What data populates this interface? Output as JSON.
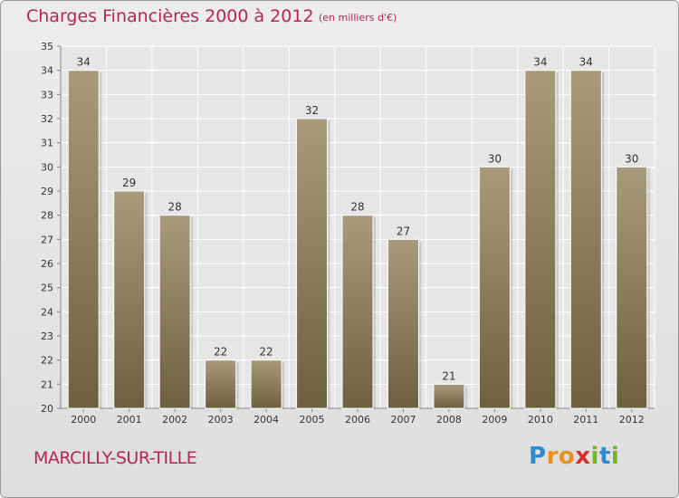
{
  "header": {
    "title": "Charges Financières 2000 à 2012",
    "subtitle": "(en milliers d'€)"
  },
  "footer": {
    "commune": "MARCILLY-SUR-TILLE",
    "logo_text": "Proxiti",
    "logo_letters": [
      "P",
      "r",
      "o",
      "x",
      "i",
      "t",
      "i"
    ],
    "logo_colors": [
      "#2a8bd0",
      "#e8911c",
      "#e8911c",
      "#d2302e",
      "#79b32b",
      "#2a8bd0",
      "#79b32b"
    ]
  },
  "colors": {
    "bar_top": "#a99a7c",
    "bar_bottom": "#6e5f40",
    "accent": "#b5245a",
    "text": "#333333"
  },
  "chart_data": {
    "type": "bar",
    "title": "Charges Financières 2000 à 2012",
    "subtitle": "(en milliers d'€)",
    "xlabel": "",
    "ylabel": "",
    "categories": [
      "2000",
      "2001",
      "2002",
      "2003",
      "2004",
      "2005",
      "2006",
      "2007",
      "2008",
      "2009",
      "2010",
      "2011",
      "2012"
    ],
    "values": [
      34,
      29,
      28,
      22,
      22,
      32,
      28,
      27,
      21,
      30,
      34,
      34,
      30
    ],
    "data_labels": [
      "34",
      "29",
      "28",
      "22",
      "22",
      "32",
      "28",
      "27",
      "21",
      "30",
      "34",
      "34",
      "30"
    ],
    "ylim": [
      20,
      35
    ],
    "yticks": [
      20,
      21,
      22,
      23,
      24,
      25,
      26,
      27,
      28,
      29,
      30,
      31,
      32,
      33,
      34,
      35
    ],
    "grid": true
  }
}
